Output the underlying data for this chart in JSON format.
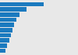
{
  "values": [
    13500,
    8200,
    6000,
    5000,
    4300,
    3800,
    3400,
    2900,
    2100,
    1600
  ],
  "bar_color": "#1a7abf",
  "background_color": "#e8e8e8",
  "xlim": [
    0,
    15000
  ],
  "figsize": [
    1.0,
    0.71
  ],
  "dpi": 100,
  "bar_height": 0.82,
  "n_bars": 10
}
